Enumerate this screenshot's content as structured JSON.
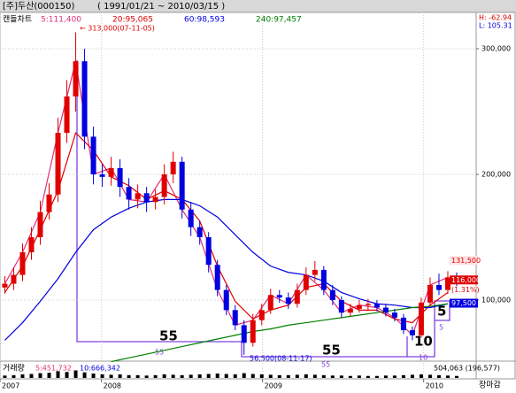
{
  "header": {
    "title": "[주]두산(000150)",
    "period": "( 1991/01/21 ~ 2010/03/15 )"
  },
  "chart_data": {
    "type": "candlestick",
    "chart_label": "캔들차트",
    "high_label": "H: -62.94",
    "low_label": "L: 105.31",
    "xlim": [
      2007.37,
      2010.326
    ],
    "xticks": [
      {
        "value": 2007.37,
        "label": "2007"
      },
      2008,
      2009,
      2010
    ],
    "ylim": [
      51400,
      317600
    ],
    "yticks": [
      {
        "value": 100000,
        "label": "100,000"
      },
      {
        "value": 200000,
        "label": "200,000"
      },
      {
        "value": 300000,
        "label": "300,000"
      }
    ],
    "grid": true,
    "candles": {
      "up_color": "#e00000",
      "down_color": "#0000e0",
      "x": [
        2007.4,
        2007.455,
        2007.51,
        2007.565,
        2007.62,
        2007.675,
        2007.73,
        2007.785,
        2007.84,
        2007.895,
        2007.95,
        2008.005,
        2008.06,
        2008.115,
        2008.17,
        2008.225,
        2008.28,
        2008.335,
        2008.39,
        2008.445,
        2008.5,
        2008.555,
        2008.61,
        2008.665,
        2008.72,
        2008.775,
        2008.83,
        2008.885,
        2008.94,
        2008.995,
        2009.05,
        2009.105,
        2009.16,
        2009.215,
        2009.27,
        2009.325,
        2009.38,
        2009.435,
        2009.49,
        2009.545,
        2009.6,
        2009.655,
        2009.71,
        2009.765,
        2009.82,
        2009.875,
        2009.93,
        2009.985,
        2010.04,
        2010.095,
        2010.15,
        2010.205
      ],
      "open": [
        110000,
        113000,
        120000,
        138000,
        150000,
        170000,
        184000,
        233000,
        262000,
        290000,
        230000,
        200000,
        198000,
        205000,
        190000,
        180000,
        185000,
        178000,
        182000,
        200000,
        210000,
        172000,
        158000,
        150000,
        128000,
        108000,
        92000,
        80000,
        66000,
        84000,
        92000,
        104000,
        102000,
        97000,
        108000,
        120000,
        124000,
        108000,
        100000,
        90000,
        93000,
        96000,
        97000,
        94000,
        90000,
        86000,
        76000,
        72000,
        98000,
        112000,
        108000,
        118000
      ],
      "high": [
        119000,
        126000,
        145000,
        158000,
        179000,
        193000,
        245000,
        275000,
        313000,
        300000,
        238000,
        208000,
        214000,
        212000,
        197000,
        192000,
        190000,
        188000,
        208000,
        218000,
        214000,
        178000,
        163000,
        154000,
        132000,
        112000,
        96000,
        84000,
        89000,
        97000,
        109000,
        108000,
        106000,
        113000,
        126000,
        131000,
        127000,
        112000,
        103000,
        97000,
        100000,
        101000,
        100000,
        97000,
        93000,
        89000,
        79000,
        102000,
        118000,
        121000,
        123000,
        122000
      ],
      "low": [
        105000,
        108000,
        115000,
        132000,
        144000,
        164000,
        178000,
        225000,
        250000,
        220000,
        192000,
        190000,
        191000,
        182000,
        172000,
        173000,
        170000,
        172000,
        176000,
        193000,
        165000,
        151000,
        144000,
        122000,
        103000,
        88000,
        76000,
        56500,
        63000,
        80000,
        89000,
        98000,
        93000,
        94000,
        104000,
        115000,
        104000,
        96000,
        86000,
        87000,
        90000,
        92000,
        91000,
        87000,
        83000,
        73000,
        68000,
        70000,
        95000,
        104000,
        105000,
        111000
      ],
      "close": [
        113000,
        120000,
        138000,
        150000,
        170000,
        184000,
        233000,
        262000,
        290000,
        230000,
        200000,
        198000,
        205000,
        190000,
        180000,
        185000,
        178000,
        182000,
        200000,
        210000,
        172000,
        158000,
        150000,
        128000,
        108000,
        92000,
        80000,
        66000,
        84000,
        92000,
        104000,
        102000,
        97000,
        108000,
        120000,
        124000,
        108000,
        100000,
        90000,
        93000,
        96000,
        97000,
        94000,
        90000,
        86000,
        76000,
        72000,
        98000,
        112000,
        108000,
        118000,
        116000
      ]
    },
    "series": [
      {
        "name": "5:111,400",
        "color": "#e0307a",
        "x": [
          2007.4,
          2007.51,
          2007.62,
          2007.73,
          2007.84,
          2007.95,
          2008.06,
          2008.17,
          2008.28,
          2008.39,
          2008.5,
          2008.61,
          2008.72,
          2008.83,
          2008.94,
          2009.05,
          2009.16,
          2009.27,
          2009.38,
          2009.49,
          2009.6,
          2009.71,
          2009.82,
          2009.93,
          2010.04,
          2010.15
        ],
        "values": [
          113000,
          138000,
          170000,
          233000,
          290000,
          200000,
          205000,
          180000,
          178000,
          200000,
          172000,
          150000,
          108000,
          80000,
          84000,
          104000,
          97000,
          120000,
          108000,
          90000,
          96000,
          94000,
          86000,
          72000,
          112000,
          118000
        ]
      },
      {
        "name": "20:95,065",
        "color": "#e00000",
        "x": [
          2007.4,
          2007.51,
          2007.62,
          2007.73,
          2007.84,
          2007.95,
          2008.06,
          2008.17,
          2008.28,
          2008.39,
          2008.5,
          2008.61,
          2008.72,
          2008.83,
          2008.94,
          2009.05,
          2009.16,
          2009.27,
          2009.38,
          2009.49,
          2009.6,
          2009.71,
          2009.82,
          2009.93,
          2010.04,
          2010.15
        ],
        "values": [
          106000,
          127000,
          156000,
          187000,
          233000,
          219000,
          198000,
          191000,
          180000,
          187000,
          180000,
          163000,
          127000,
          99000,
          85000,
          92000,
          96000,
          110000,
          113000,
          99000,
          92000,
          92000,
          85000,
          82000,
          96000,
          106000
        ]
      },
      {
        "name": "60:98,593",
        "color": "#0000e0",
        "x": [
          2007.4,
          2007.51,
          2007.62,
          2007.73,
          2007.84,
          2007.95,
          2008.06,
          2008.17,
          2008.28,
          2008.39,
          2008.5,
          2008.61,
          2008.72,
          2008.83,
          2008.94,
          2009.05,
          2009.16,
          2009.27,
          2009.38,
          2009.49,
          2009.6,
          2009.71,
          2009.82,
          2009.93,
          2010.04,
          2010.15
        ],
        "values": [
          68000,
          82000,
          99000,
          117000,
          138000,
          156000,
          166000,
          173000,
          178000,
          180000,
          180000,
          175000,
          166000,
          152000,
          138000,
          127000,
          122000,
          120000,
          115000,
          106000,
          101000,
          97000,
          96000,
          94000,
          94000,
          97000
        ]
      },
      {
        "name": "240:97,457",
        "color": "#008000",
        "x": [
          2007.4,
          2007.51,
          2007.62,
          2007.73,
          2007.84,
          2007.95,
          2008.06,
          2008.17,
          2008.28,
          2008.39,
          2008.5,
          2008.61,
          2008.72,
          2008.83,
          2008.94,
          2009.05,
          2009.16,
          2009.27,
          2009.38,
          2009.49,
          2009.6,
          2009.71,
          2009.82,
          2009.93,
          2010.04,
          2010.15
        ],
        "values": [
          null,
          null,
          null,
          null,
          null,
          null,
          51000,
          54000,
          57000,
          60000,
          63000,
          66000,
          69000,
          72000,
          75000,
          77000,
          80000,
          82000,
          84000,
          86000,
          88000,
          90000,
          92000,
          94000,
          95000,
          97000
        ]
      }
    ],
    "price_labels": [
      {
        "value": 131500,
        "label": "131,500",
        "fill": "#ffe0e0",
        "text_color": "#e00000"
      },
      {
        "value": 116000,
        "label": "116,000",
        "fill": "#e00000",
        "text_color": "#ffffff"
      },
      {
        "value": 97500,
        "label": "97,500",
        "fill": "#0000e0",
        "text_color": "#ffffff"
      }
    ],
    "change_label": "(1.31%)",
    "annotations": {
      "peak": "← 313,000(07-11-05)",
      "trough": "56,500(08-11-17)",
      "cycles": [
        "55",
        "55",
        "10",
        "5"
      ],
      "cycle_marks": [
        "55",
        "55",
        "10",
        "5"
      ]
    },
    "volume": {
      "label": "거래량",
      "ma": [
        {
          "text": "5:451,732",
          "color": "#e0307a"
        },
        {
          "text": "10:666,342",
          "color": "#0000e0"
        }
      ],
      "last": "504,063 (196,577)",
      "ylim": [
        0,
        2000000
      ],
      "color": "#000000",
      "values": [
        600000,
        700000,
        900000,
        1000000,
        1200000,
        1300000,
        1700000,
        1500000,
        1900000,
        1400000,
        1100000,
        900000,
        800000,
        900000,
        700000,
        700000,
        600000,
        700000,
        900000,
        800000,
        700000,
        800000,
        900000,
        1000000,
        1100000,
        1000000,
        900000,
        1200000,
        1000000,
        900000,
        800000,
        700000,
        700000,
        800000,
        900000,
        800000,
        700000,
        600000,
        600000,
        500000,
        600000,
        500000,
        500000,
        600000,
        600000,
        700000,
        800000,
        900000,
        800000,
        700000,
        600000,
        500000
      ]
    },
    "status": "장마감"
  }
}
